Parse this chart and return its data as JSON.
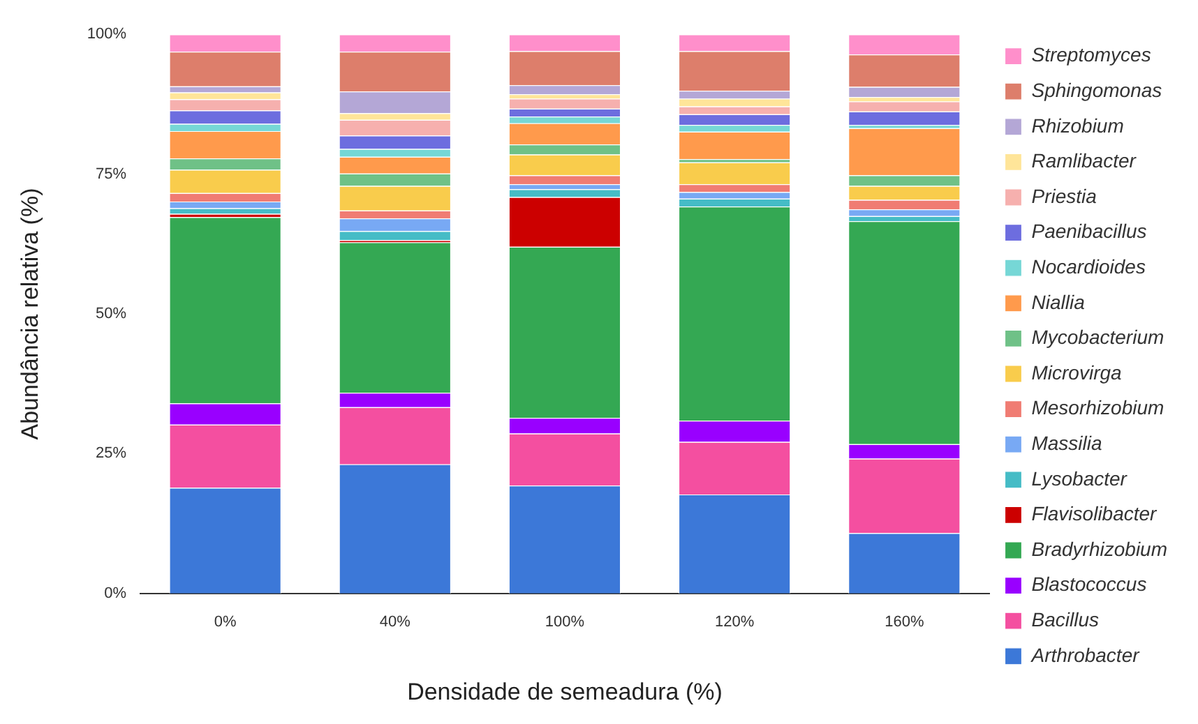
{
  "chart_data": {
    "type": "bar",
    "stacked": true,
    "xlabel": "Densidade de semeadura (%)",
    "ylabel": "Abundância relativa (%)",
    "categories": [
      "0%",
      "40%",
      "100%",
      "120%",
      "160%"
    ],
    "ylim": [
      0,
      100
    ],
    "yticks": [
      {
        "value": 0,
        "label": "0%"
      },
      {
        "value": 25,
        "label": "25%"
      },
      {
        "value": 50,
        "label": "50%"
      },
      {
        "value": 75,
        "label": "75%"
      },
      {
        "value": 100,
        "label": "100%"
      }
    ],
    "grid": false,
    "legend": "right",
    "series": [
      {
        "name": "Arthrobacter",
        "color": "#3c78d8",
        "values": [
          18.9,
          23.1,
          19.3,
          17.7,
          10.8
        ]
      },
      {
        "name": "Bacillus",
        "color": "#f44fa0",
        "values": [
          11.3,
          10.2,
          9.3,
          9.4,
          13.3
        ]
      },
      {
        "name": "Blastococcus",
        "color": "#9900ff",
        "values": [
          3.8,
          2.6,
          2.8,
          3.8,
          2.6
        ]
      },
      {
        "name": "Bradyrhizobium",
        "color": "#34a853",
        "values": [
          33.3,
          26.9,
          30.6,
          38.3,
          39.9
        ]
      },
      {
        "name": "Flavisolibacter",
        "color": "#cc0000",
        "values": [
          0.6,
          0.4,
          8.9,
          0,
          0
        ]
      },
      {
        "name": "Lysobacter",
        "color": "#45bcc6",
        "values": [
          1.0,
          1.6,
          1.4,
          1.4,
          0.9
        ]
      },
      {
        "name": "Massilia",
        "color": "#78a9f4",
        "values": [
          1.2,
          2.3,
          0.9,
          1.2,
          1.2
        ]
      },
      {
        "name": "Mesorhizobium",
        "color": "#f07c73",
        "values": [
          1.5,
          1.4,
          1.6,
          1.4,
          1.7
        ]
      },
      {
        "name": "Microvirga",
        "color": "#f9cc4c",
        "values": [
          4.2,
          4.4,
          3.7,
          3.9,
          2.5
        ]
      },
      {
        "name": "Mycobacterium",
        "color": "#6fc187",
        "values": [
          2.0,
          2.2,
          1.8,
          0.6,
          1.9
        ]
      },
      {
        "name": "Niallia",
        "color": "#ff9a4c",
        "values": [
          4.9,
          3.0,
          3.8,
          4.9,
          8.4
        ]
      },
      {
        "name": "Nocardioides",
        "color": "#76d7d6",
        "values": [
          1.3,
          1.4,
          1.2,
          1.2,
          0.6
        ]
      },
      {
        "name": "Paenibacillus",
        "color": "#6d6ddf",
        "values": [
          2.4,
          2.4,
          1.4,
          1.9,
          2.4
        ]
      },
      {
        "name": "Priestia",
        "color": "#f6b0ae",
        "values": [
          2.0,
          2.8,
          1.8,
          1.4,
          1.8
        ]
      },
      {
        "name": "Ramlibacter",
        "color": "#ffe599",
        "values": [
          1.2,
          1.2,
          0.8,
          1.4,
          0.8
        ]
      },
      {
        "name": "Rhizobium",
        "color": "#b4a7d6",
        "values": [
          1.1,
          3.9,
          1.6,
          1.4,
          1.8
        ]
      },
      {
        "name": "Sphingomonas",
        "color": "#dd7e6b",
        "values": [
          6.2,
          7.1,
          6.1,
          7.1,
          5.8
        ]
      },
      {
        "name": "Streptomyces",
        "color": "#ff8fcb",
        "values": [
          3.1,
          3.1,
          3.0,
          3.0,
          3.6
        ]
      }
    ]
  }
}
